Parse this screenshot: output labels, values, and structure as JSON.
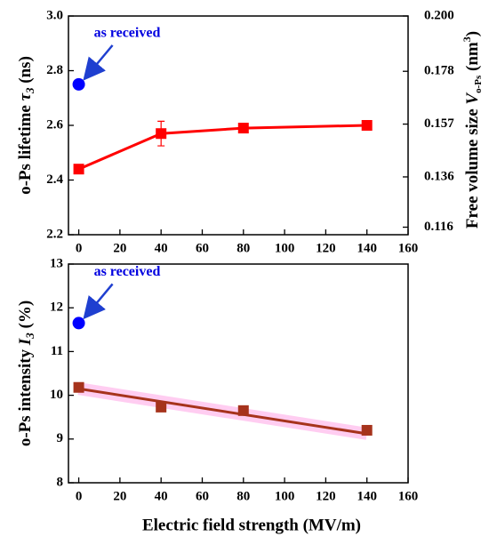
{
  "chart_data": [
    {
      "type": "line",
      "ylabel": [
        "o-Ps lifetime ",
        "τ",
        "3",
        " (ns)"
      ],
      "y2label": [
        "Free volume size ",
        "V",
        "o-Ps",
        " (nm",
        "3",
        ")"
      ],
      "xlim": [
        -5,
        160
      ],
      "xticks": [
        0,
        20,
        40,
        60,
        80,
        100,
        120,
        140,
        160
      ],
      "ylim": [
        2.2,
        3.0
      ],
      "yticks": [
        2.2,
        2.4,
        2.6,
        2.8,
        {
          "value": 3.0,
          "label": "3.0"
        }
      ],
      "y2lim": [
        0.113,
        0.2
      ],
      "y2ticks": [
        0.116,
        0.136,
        0.157,
        0.178,
        {
          "value": 0.2,
          "label": "0.200"
        }
      ],
      "series": [
        {
          "x": [
            0,
            40,
            80,
            140
          ],
          "values": [
            2.44,
            2.57,
            2.59,
            2.6
          ],
          "errors": [
            null,
            0.045,
            null,
            null
          ],
          "color": "#ff0000",
          "marker": "square"
        }
      ],
      "reference": {
        "x": 0,
        "value": 2.75,
        "color": "#0000ff",
        "annotation": "as received"
      }
    },
    {
      "type": "line",
      "xlabel": "Electric field strength (MV/m)",
      "ylabel": [
        "o-Ps intensity ",
        "I",
        "3",
        " (%)"
      ],
      "xlim": [
        -5,
        160
      ],
      "xticks": [
        0,
        20,
        40,
        60,
        80,
        100,
        120,
        140,
        160
      ],
      "ylim": [
        8,
        13
      ],
      "yticks": [
        8,
        9,
        10,
        11,
        12,
        13
      ],
      "series": [
        {
          "x": [
            0,
            40,
            80,
            140
          ],
          "values": [
            10.18,
            9.73,
            9.65,
            9.2
          ],
          "color": "#a6331c",
          "marker": "square"
        }
      ],
      "fit": {
        "x": [
          0,
          140
        ],
        "values": [
          10.15,
          9.12
        ],
        "color": "#a6331c"
      },
      "reference": {
        "x": 0,
        "value": 11.65,
        "color": "#0000ff",
        "annotation": "as received"
      }
    }
  ]
}
